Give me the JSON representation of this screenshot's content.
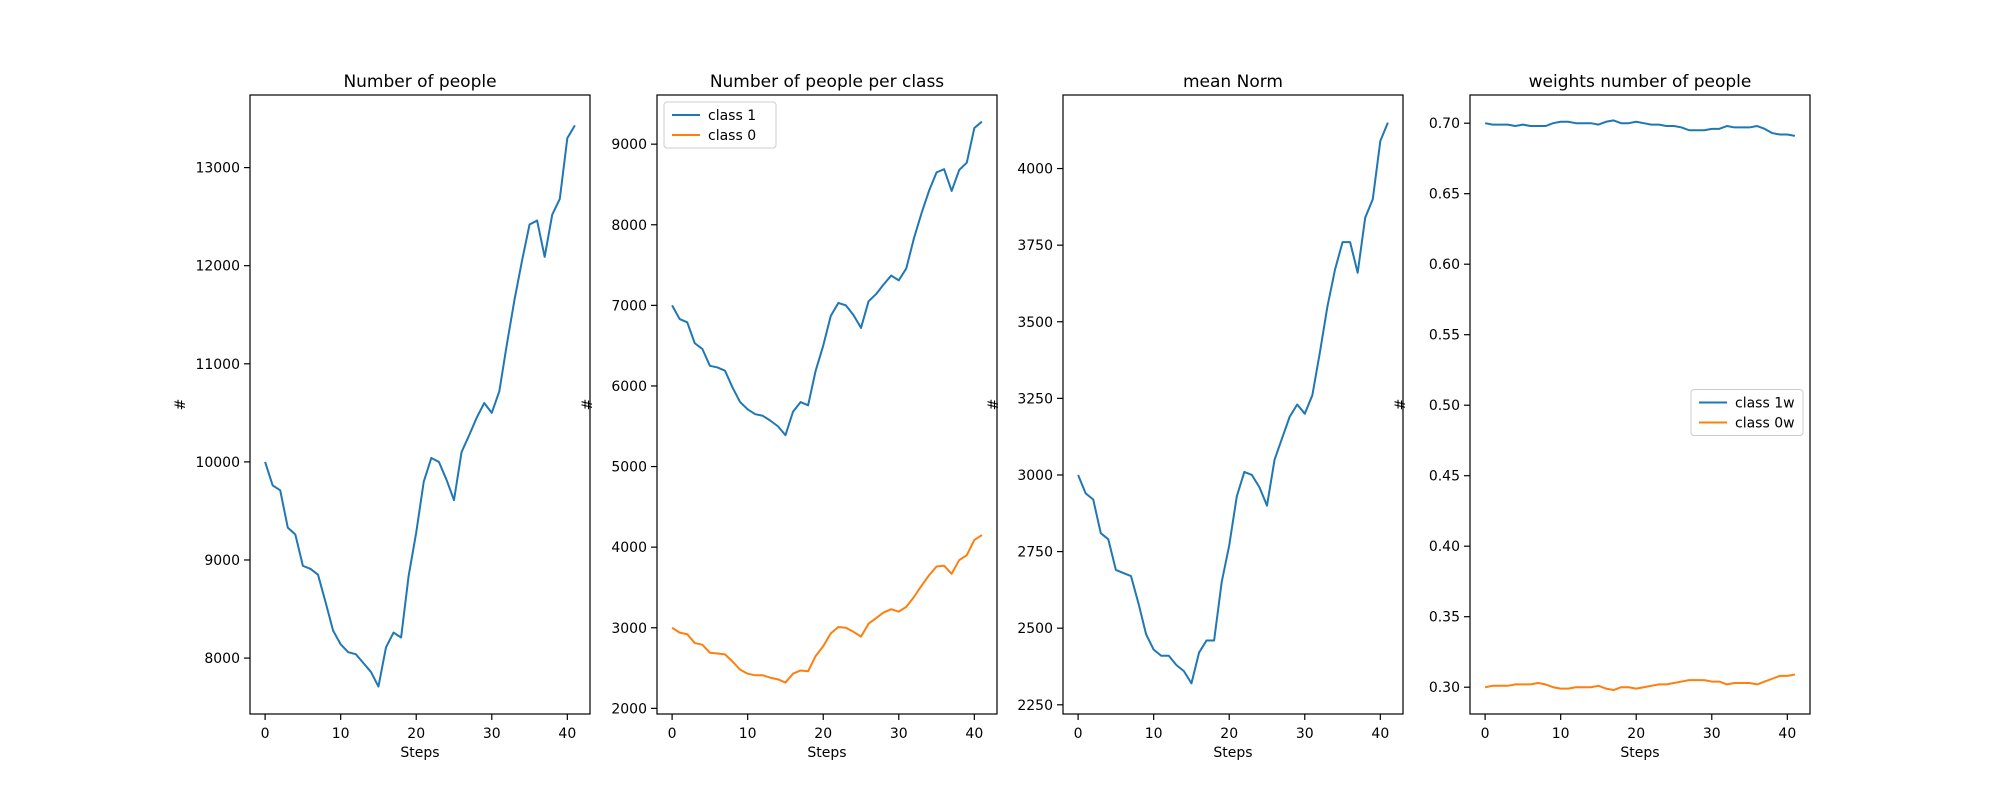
{
  "chart_data": [
    {
      "type": "line",
      "title": "Number of people",
      "xlabel": "Steps",
      "ylabel": "#",
      "xlim": [
        -2,
        43
      ],
      "ylim": [
        7430,
        13740
      ],
      "xticks": [
        0,
        10,
        20,
        30,
        40
      ],
      "yticks": [
        8000,
        9000,
        10000,
        11000,
        12000,
        13000
      ],
      "grid": false,
      "legend": null,
      "series": [
        {
          "name": "",
          "color": "#1f77b4",
          "x": [
            0,
            1,
            2,
            3,
            4,
            5,
            6,
            7,
            8,
            9,
            10,
            11,
            12,
            13,
            14,
            15,
            16,
            17,
            18,
            19,
            20,
            21,
            22,
            23,
            24,
            25,
            26,
            27,
            28,
            29,
            30,
            31,
            32,
            33,
            34,
            35,
            36,
            37,
            38,
            39,
            40,
            41
          ],
          "y": [
            10000,
            9760,
            9710,
            9330,
            9260,
            8940,
            8910,
            8850,
            8570,
            8280,
            8140,
            8060,
            8040,
            7950,
            7860,
            7710,
            8110,
            8260,
            8210,
            8840,
            9280,
            9800,
            10040,
            10000,
            9820,
            9610,
            10100,
            10270,
            10450,
            10600,
            10500,
            10720,
            11200,
            11650,
            12050,
            12420,
            12460,
            12090,
            12520,
            12680,
            13300,
            13430
          ]
        }
      ]
    },
    {
      "type": "line",
      "title": "Number of people per class",
      "xlabel": "Steps",
      "ylabel": "#",
      "xlim": [
        -2,
        43
      ],
      "ylim": [
        1930,
        9610
      ],
      "xticks": [
        0,
        10,
        20,
        30,
        40
      ],
      "yticks": [
        2000,
        3000,
        4000,
        5000,
        6000,
        7000,
        8000,
        9000
      ],
      "grid": false,
      "legend": "upper-left",
      "series": [
        {
          "name": "class 1",
          "color": "#1f77b4",
          "x": [
            0,
            1,
            2,
            3,
            4,
            5,
            6,
            7,
            8,
            9,
            10,
            11,
            12,
            13,
            14,
            15,
            16,
            17,
            18,
            19,
            20,
            21,
            22,
            23,
            24,
            25,
            26,
            27,
            28,
            29,
            30,
            31,
            32,
            33,
            34,
            35,
            36,
            37,
            38,
            39,
            40,
            41
          ],
          "y": [
            7000,
            6830,
            6790,
            6530,
            6460,
            6250,
            6230,
            6190,
            5980,
            5800,
            5710,
            5650,
            5630,
            5570,
            5500,
            5390,
            5680,
            5800,
            5760,
            6190,
            6500,
            6870,
            7030,
            7000,
            6880,
            6720,
            7050,
            7140,
            7260,
            7370,
            7310,
            7460,
            7830,
            8140,
            8420,
            8650,
            8690,
            8420,
            8680,
            8770,
            9200,
            9280
          ]
        },
        {
          "name": "class 0",
          "color": "#ff7f0e",
          "x": [
            0,
            1,
            2,
            3,
            4,
            5,
            6,
            7,
            8,
            9,
            10,
            11,
            12,
            13,
            14,
            15,
            16,
            17,
            18,
            19,
            20,
            21,
            22,
            23,
            24,
            25,
            26,
            27,
            28,
            29,
            30,
            31,
            32,
            33,
            34,
            35,
            36,
            37,
            38,
            39,
            40,
            41
          ],
          "y": [
            3000,
            2940,
            2920,
            2810,
            2790,
            2690,
            2680,
            2670,
            2580,
            2480,
            2430,
            2410,
            2410,
            2380,
            2360,
            2320,
            2430,
            2470,
            2460,
            2650,
            2770,
            2930,
            3010,
            3000,
            2950,
            2890,
            3050,
            3120,
            3190,
            3230,
            3200,
            3260,
            3380,
            3520,
            3650,
            3760,
            3770,
            3670,
            3840,
            3900,
            4090,
            4150
          ]
        }
      ]
    },
    {
      "type": "line",
      "title": "mean Norm",
      "xlabel": "Steps",
      "ylabel": "#",
      "xlim": [
        -2,
        43
      ],
      "ylim": [
        2220,
        4240
      ],
      "xticks": [
        0,
        10,
        20,
        30,
        40
      ],
      "yticks": [
        2250,
        2500,
        2750,
        3000,
        3250,
        3500,
        3750,
        4000
      ],
      "grid": false,
      "legend": null,
      "series": [
        {
          "name": "",
          "color": "#1f77b4",
          "x": [
            0,
            1,
            2,
            3,
            4,
            5,
            6,
            7,
            8,
            9,
            10,
            11,
            12,
            13,
            14,
            15,
            16,
            17,
            18,
            19,
            20,
            21,
            22,
            23,
            24,
            25,
            26,
            27,
            28,
            29,
            30,
            31,
            32,
            33,
            34,
            35,
            36,
            37,
            38,
            39,
            40,
            41
          ],
          "y": [
            3000,
            2940,
            2920,
            2810,
            2790,
            2690,
            2680,
            2670,
            2580,
            2480,
            2430,
            2410,
            2410,
            2380,
            2360,
            2320,
            2420,
            2460,
            2460,
            2650,
            2770,
            2930,
            3010,
            3000,
            2960,
            2900,
            3050,
            3120,
            3190,
            3230,
            3200,
            3260,
            3400,
            3550,
            3670,
            3760,
            3760,
            3660,
            3840,
            3900,
            4090,
            4150
          ]
        }
      ]
    },
    {
      "type": "line",
      "title": "weights number of people",
      "xlabel": "Steps",
      "ylabel": "#",
      "xlim": [
        -2,
        43
      ],
      "ylim": [
        0.281,
        0.72
      ],
      "xticks": [
        0,
        10,
        20,
        30,
        40
      ],
      "yticks": [
        0.3,
        0.35,
        0.4,
        0.45,
        0.5,
        0.55,
        0.6,
        0.65,
        0.7
      ],
      "ytick_labels": [
        "0.30",
        "0.35",
        "0.40",
        "0.45",
        "0.50",
        "0.55",
        "0.60",
        "0.65",
        "0.70"
      ],
      "grid": false,
      "legend": "center-right",
      "series": [
        {
          "name": "class 1w",
          "color": "#1f77b4",
          "x": [
            0,
            1,
            2,
            3,
            4,
            5,
            6,
            7,
            8,
            9,
            10,
            11,
            12,
            13,
            14,
            15,
            16,
            17,
            18,
            19,
            20,
            21,
            22,
            23,
            24,
            25,
            26,
            27,
            28,
            29,
            30,
            31,
            32,
            33,
            34,
            35,
            36,
            37,
            38,
            39,
            40,
            41
          ],
          "y": [
            0.7,
            0.699,
            0.699,
            0.699,
            0.698,
            0.699,
            0.698,
            0.698,
            0.698,
            0.7,
            0.701,
            0.701,
            0.7,
            0.7,
            0.7,
            0.699,
            0.701,
            0.702,
            0.7,
            0.7,
            0.701,
            0.7,
            0.699,
            0.699,
            0.698,
            0.698,
            0.697,
            0.695,
            0.695,
            0.695,
            0.696,
            0.696,
            0.698,
            0.697,
            0.697,
            0.697,
            0.698,
            0.696,
            0.693,
            0.692,
            0.692,
            0.691
          ]
        },
        {
          "name": "class 0w",
          "color": "#ff7f0e",
          "x": [
            0,
            1,
            2,
            3,
            4,
            5,
            6,
            7,
            8,
            9,
            10,
            11,
            12,
            13,
            14,
            15,
            16,
            17,
            18,
            19,
            20,
            21,
            22,
            23,
            24,
            25,
            26,
            27,
            28,
            29,
            30,
            31,
            32,
            33,
            34,
            35,
            36,
            37,
            38,
            39,
            40,
            41
          ],
          "y": [
            0.3,
            0.301,
            0.301,
            0.301,
            0.302,
            0.302,
            0.302,
            0.303,
            0.302,
            0.3,
            0.299,
            0.299,
            0.3,
            0.3,
            0.3,
            0.301,
            0.299,
            0.298,
            0.3,
            0.3,
            0.299,
            0.3,
            0.301,
            0.302,
            0.302,
            0.303,
            0.304,
            0.305,
            0.305,
            0.305,
            0.304,
            0.304,
            0.302,
            0.303,
            0.303,
            0.303,
            0.302,
            0.304,
            0.306,
            0.308,
            0.308,
            0.309
          ]
        }
      ]
    }
  ]
}
